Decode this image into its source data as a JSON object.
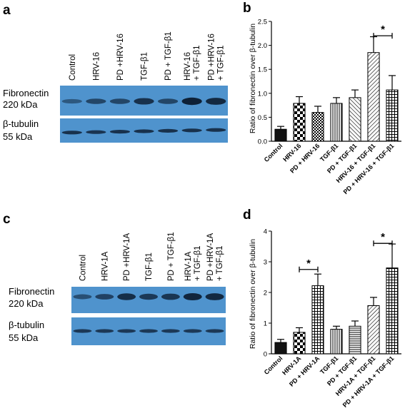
{
  "panels": {
    "a": "a",
    "b": "b",
    "c": "c",
    "d": "d"
  },
  "blot_a": {
    "lanes": [
      [
        "Control"
      ],
      [
        "HRV-16"
      ],
      [
        "PD +HRV-16"
      ],
      [
        "TGF-β1"
      ],
      [
        "PD + TGF-β1"
      ],
      [
        "HRV-16",
        "+ TGF-β1"
      ],
      [
        "PD +HRV-16",
        "+ TGF-β1"
      ]
    ],
    "fibronectin_label": [
      "Fibronectin",
      "220 kDa"
    ],
    "tubulin_label": [
      "β-tubulin",
      "55 kDa"
    ],
    "blot_color": "#4f93cd",
    "band_intensity_fibronectin": [
      0.35,
      0.55,
      0.55,
      0.8,
      0.55,
      1.0,
      0.9
    ],
    "band_intensity_tubulin": [
      0.85,
      0.8,
      0.85,
      0.85,
      0.85,
      0.85,
      0.85
    ]
  },
  "blot_c": {
    "lanes": [
      [
        "Control"
      ],
      [
        "HRV-1A"
      ],
      [
        "PD +HRV-1A"
      ],
      [
        "TGF-β1"
      ],
      [
        "PD + TGF-β1"
      ],
      [
        "HRV-1A",
        "+ TGF-β1"
      ],
      [
        "PD +HRV-1A",
        "+ TGF-β1"
      ]
    ],
    "fibronectin_label": [
      "Fibronectin",
      "220 kDa"
    ],
    "tubulin_label": [
      "β-tubulin",
      "55 kDa"
    ],
    "blot_color": "#4f93cd",
    "band_intensity_fibronectin": [
      0.45,
      0.6,
      0.85,
      0.7,
      0.75,
      0.95,
      0.9
    ],
    "band_intensity_tubulin": [
      0.75,
      0.75,
      0.75,
      0.75,
      0.75,
      0.75,
      0.75
    ]
  },
  "chart_data": [
    {
      "type": "bar",
      "panel": "b",
      "ylabel": "Ratio of fibronectin over β-tubulin",
      "ylim": [
        0,
        2.5
      ],
      "yticks": [
        "0.0",
        "0.5",
        "1.0",
        "1.5",
        "2.0",
        "2.5"
      ],
      "categories": [
        "Control",
        "HRV-16",
        "PD + HRV-16",
        "TGF-β1",
        "PD + TGF-β1",
        "HRV-16 + TGF-β1",
        "PD + HRV-16 + TGF-β1"
      ],
      "values": [
        0.25,
        0.79,
        0.6,
        0.79,
        0.91,
        1.85,
        1.07
      ],
      "errors": [
        0.06,
        0.14,
        0.13,
        0.12,
        0.16,
        0.33,
        0.3
      ],
      "patterns": [
        "solid",
        "check",
        "dots",
        "vlines",
        "diag-rev",
        "diag",
        "grid"
      ],
      "significance": [
        {
          "from": 5,
          "to": 6,
          "label": "*",
          "y": 2.2
        }
      ]
    },
    {
      "type": "bar",
      "panel": "d",
      "ylabel": "Ratio of fibronectin over β-tubulin",
      "ylim": [
        0,
        4
      ],
      "yticks": [
        "0",
        "1",
        "2",
        "3",
        "4"
      ],
      "categories": [
        "Control",
        "HRV-1A",
        "PD + HRV-1A",
        "TGF-β1",
        "PD + TGF-β1",
        "HRV-1A + TGF-β1",
        "PD + HRV-1A + TGF-β1"
      ],
      "values": [
        0.37,
        0.7,
        2.22,
        0.8,
        0.9,
        1.57,
        2.8
      ],
      "errors": [
        0.1,
        0.15,
        0.38,
        0.1,
        0.17,
        0.27,
        0.78
      ],
      "patterns": [
        "solid",
        "check",
        "grid",
        "vlines",
        "hlines",
        "diag",
        "grid"
      ],
      "significance": [
        {
          "from": 1,
          "to": 2,
          "label": "*",
          "y": 2.75
        },
        {
          "from": 5,
          "to": 6,
          "label": "*",
          "y": 3.6
        }
      ]
    }
  ]
}
